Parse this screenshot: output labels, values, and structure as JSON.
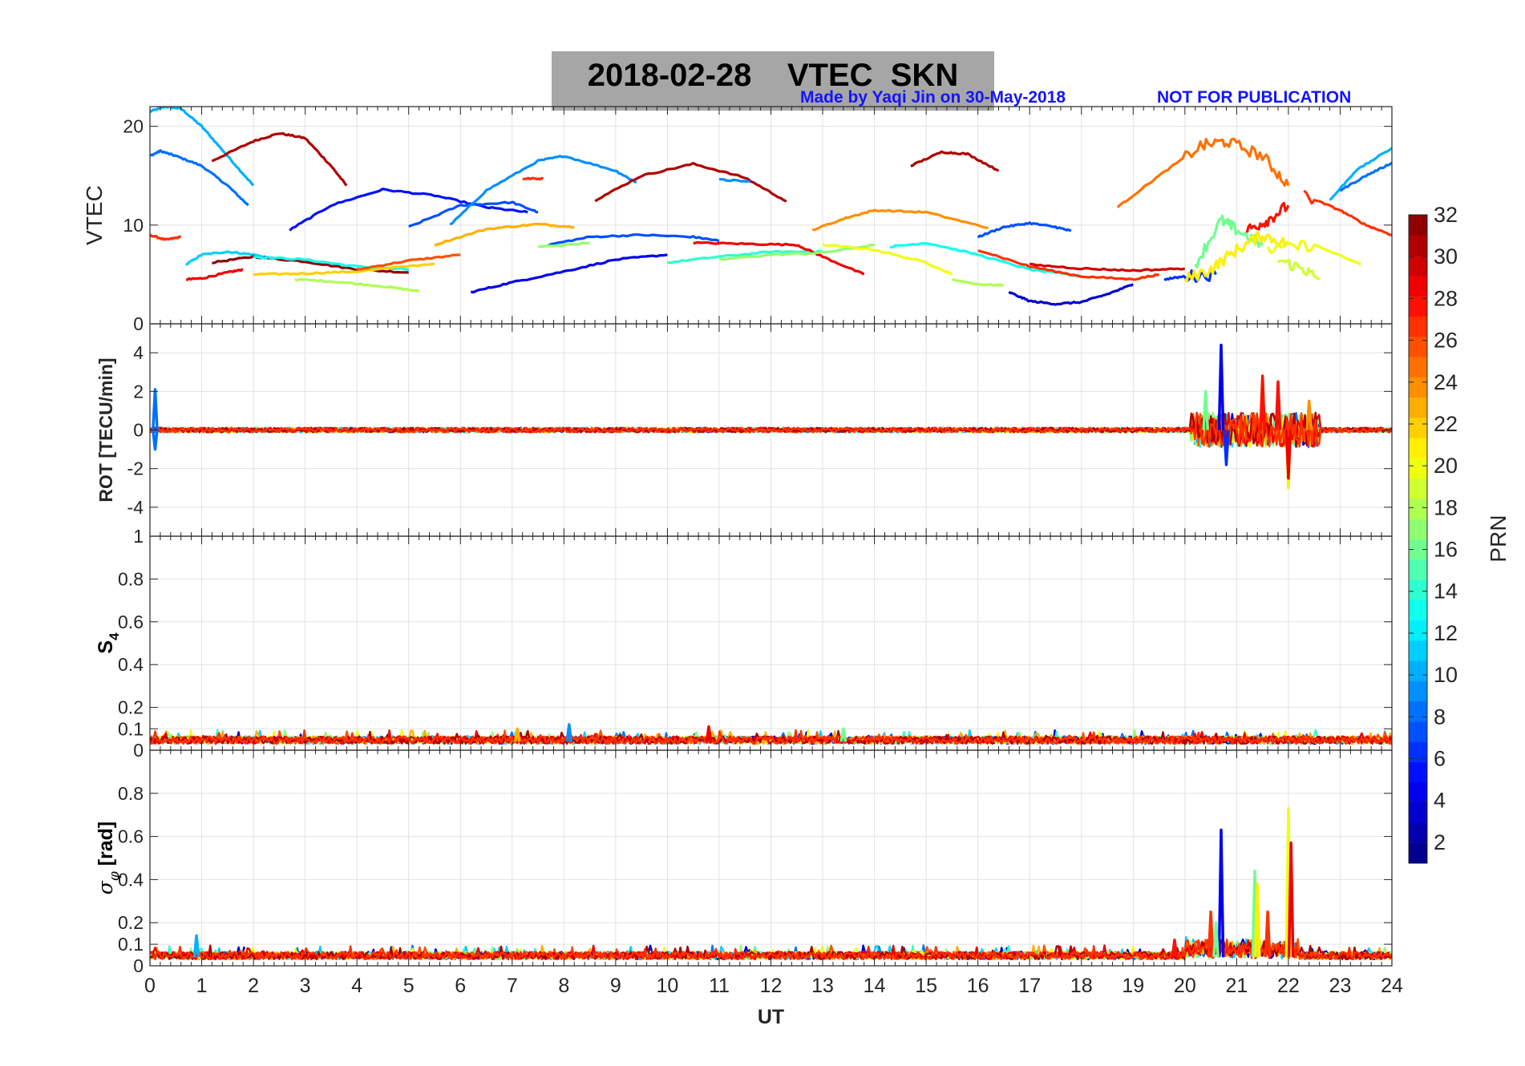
{
  "figure": {
    "title": "2018-02-28    VTEC  SKN",
    "made_by": "Made by Yaqi Jin on 30-May-2018",
    "notice": "NOT FOR PUBLICATION",
    "xlabel": "UT",
    "colorbar_label": "PRN"
  },
  "chart_data": [
    {
      "type": "line",
      "panel": "vtec",
      "ylabel": "VTEC",
      "xlim": [
        0,
        24
      ],
      "ylim": [
        0,
        22
      ],
      "yticks": [
        "0",
        "10",
        "20"
      ],
      "ytick_values": [
        0,
        10,
        20
      ],
      "grid": true,
      "series": [
        {
          "prn": 10,
          "x": [
            0,
            0.3,
            0.6,
            1.0,
            1.5,
            2.0
          ],
          "y": [
            21.5,
            22,
            21.8,
            20,
            17,
            14
          ]
        },
        {
          "prn": 8,
          "x": [
            0,
            0.2,
            0.5,
            1.0,
            1.5,
            1.9
          ],
          "y": [
            17,
            17.5,
            17,
            16,
            14,
            12
          ]
        },
        {
          "prn": 31,
          "x": [
            1.2,
            2.0,
            2.5,
            3.0,
            3.5,
            3.8
          ],
          "y": [
            16.5,
            18.5,
            19.3,
            18.8,
            16,
            14
          ]
        },
        {
          "prn": 27,
          "x": [
            0,
            0.3,
            0.6
          ],
          "y": [
            9,
            8.5,
            8.8
          ]
        },
        {
          "prn": 11,
          "x": [
            0.7,
            1.0,
            1.5,
            2.0,
            2.5
          ],
          "y": [
            6,
            7,
            7.3,
            7,
            6.5
          ]
        },
        {
          "prn": 29,
          "x": [
            0.7,
            1.0,
            1.5,
            1.8
          ],
          "y": [
            4.5,
            4.6,
            5.2,
            5.5
          ]
        },
        {
          "prn": 32,
          "x": [
            1.2,
            2.0,
            3.0,
            4.0,
            5.0
          ],
          "y": [
            6.2,
            6.8,
            6.3,
            5.5,
            5.2
          ]
        },
        {
          "prn": 13,
          "x": [
            2.0,
            3.0,
            4.0,
            5.0
          ],
          "y": [
            6.8,
            6.5,
            5.8,
            5.5
          ]
        },
        {
          "prn": 22,
          "x": [
            2.0,
            3.0,
            4.0,
            5.5
          ],
          "y": [
            5.0,
            5.1,
            5.3,
            6.1
          ]
        },
        {
          "prn": 18,
          "x": [
            2.8,
            3.5,
            4.5,
            5.2
          ],
          "y": [
            4.5,
            4.3,
            3.8,
            3.3
          ]
        },
        {
          "prn": 26,
          "x": [
            4.0,
            5.0,
            6.0
          ],
          "y": [
            5.5,
            6.4,
            7.0
          ]
        },
        {
          "prn": 5,
          "x": [
            2.7,
            3.5,
            4.5,
            5.5,
            6.5,
            7.3
          ],
          "y": [
            9.5,
            12,
            13.6,
            13,
            11.8,
            11.3
          ]
        },
        {
          "prn": 7,
          "x": [
            5.0,
            6.0,
            7.0,
            7.5
          ],
          "y": [
            9.8,
            12,
            12.3,
            11.3
          ]
        },
        {
          "prn": 9,
          "x": [
            5.8,
            6.5,
            7.5,
            8.0,
            9.0,
            9.4
          ],
          "y": [
            10,
            13.5,
            16.5,
            17,
            15.5,
            14.3
          ]
        },
        {
          "prn": 27,
          "x": [
            7.2,
            7.6
          ],
          "y": [
            14.7,
            14.7
          ]
        },
        {
          "prn": 23,
          "x": [
            5.5,
            6.5,
            7.5,
            8.2
          ],
          "y": [
            8.0,
            9.6,
            10.1,
            9.8
          ]
        },
        {
          "prn": 31,
          "x": [
            8.6,
            9.5,
            10.5,
            11.5,
            12.3
          ],
          "y": [
            12.5,
            15,
            16.2,
            14.8,
            12.4
          ]
        },
        {
          "prn": 9,
          "x": [
            11.0,
            11.6
          ],
          "y": [
            14.6,
            14.4
          ]
        },
        {
          "prn": 4,
          "x": [
            6.2,
            7.0,
            8.0,
            9.0,
            10.0
          ],
          "y": [
            3.2,
            4.2,
            5.3,
            6.5,
            7.0
          ]
        },
        {
          "prn": 14,
          "x": [
            10.0,
            11.0,
            12.0,
            13.0
          ],
          "y": [
            6.2,
            6.8,
            7.3,
            7.3
          ]
        },
        {
          "prn": 7,
          "x": [
            7.7,
            8.5,
            9.5,
            10.5,
            11.0
          ],
          "y": [
            8.0,
            8.8,
            9.0,
            8.8,
            8.4
          ]
        },
        {
          "prn": 17,
          "x": [
            7.5,
            8.5
          ],
          "y": [
            7.8,
            8.2
          ]
        },
        {
          "prn": 29,
          "x": [
            10.5,
            11.5,
            12.5,
            13.0,
            13.8
          ],
          "y": [
            8.2,
            8.1,
            8.0,
            6.8,
            5.0
          ]
        },
        {
          "prn": 17,
          "x": [
            11.0,
            12.0,
            13.0,
            14.0
          ],
          "y": [
            6.5,
            7.0,
            7.2,
            8.0
          ]
        },
        {
          "prn": 20,
          "x": [
            13.0,
            14.0,
            15.0,
            15.5
          ],
          "y": [
            8.0,
            7.5,
            6.2,
            5.0
          ]
        },
        {
          "prn": 24,
          "x": [
            12.8,
            13.5,
            14.0,
            15.0,
            16.2
          ],
          "y": [
            9.5,
            10.8,
            11.5,
            11.3,
            9.7
          ]
        },
        {
          "prn": 31,
          "x": [
            14.7,
            15.3,
            15.8,
            16.4
          ],
          "y": [
            16,
            17.4,
            17.2,
            15.5
          ]
        },
        {
          "prn": 13,
          "x": [
            14.3,
            15.0,
            16.0,
            17.0,
            18.0
          ],
          "y": [
            7.8,
            8.2,
            7.0,
            5.5,
            4.8
          ]
        },
        {
          "prn": 18,
          "x": [
            15.5,
            16.0,
            16.5
          ],
          "y": [
            4.5,
            4.0,
            3.9
          ]
        },
        {
          "prn": 7,
          "x": [
            16.0,
            16.5,
            17.0,
            17.5,
            17.8
          ],
          "y": [
            8.8,
            9.8,
            10.2,
            9.8,
            9.4
          ]
        },
        {
          "prn": 3,
          "x": [
            16.6,
            17.0,
            17.5,
            18.0,
            18.5,
            19.0
          ],
          "y": [
            3.2,
            2.3,
            2.0,
            2.2,
            3.0,
            4.0
          ]
        },
        {
          "prn": 27,
          "x": [
            16.0,
            17.0,
            18.0,
            19.0,
            19.5
          ],
          "y": [
            7.5,
            5.8,
            4.8,
            4.5,
            5.0
          ]
        },
        {
          "prn": 30,
          "x": [
            17.0,
            18.0,
            19.0,
            20.0
          ],
          "y": [
            6.0,
            5.6,
            5.4,
            5.6
          ]
        },
        {
          "prn": 25,
          "x": [
            18.7,
            19.5,
            20.3,
            20.8,
            21.5,
            22.0
          ],
          "y": [
            11.8,
            15,
            18,
            18.5,
            17,
            14
          ]
        },
        {
          "prn": 6,
          "x": [
            19.6,
            20.0,
            20.6
          ],
          "y": [
            4.5,
            4.8,
            5.0
          ]
        },
        {
          "prn": 16,
          "x": [
            20.2,
            20.7,
            21.0,
            21.5
          ],
          "y": [
            6,
            10.5,
            9.5,
            8
          ]
        },
        {
          "prn": 21,
          "x": [
            20.0,
            20.5,
            21.0,
            21.5,
            22.0
          ],
          "y": [
            4.5,
            5.5,
            7.5,
            9,
            8
          ]
        },
        {
          "prn": 28,
          "x": [
            21.2,
            21.6,
            22.0
          ],
          "y": [
            9.5,
            10.5,
            12.0
          ]
        },
        {
          "prn": 20,
          "x": [
            21.6,
            22.5,
            23.4
          ],
          "y": [
            7.5,
            8.0,
            6.0
          ]
        },
        {
          "prn": 19,
          "x": [
            21.8,
            22.3,
            22.6
          ],
          "y": [
            6.5,
            5.5,
            4.5
          ]
        },
        {
          "prn": 27,
          "x": [
            22.3,
            23.0,
            23.5,
            24.0
          ],
          "y": [
            13.0,
            11.5,
            10.0,
            9.0
          ]
        },
        {
          "prn": 10,
          "x": [
            22.8,
            23.3,
            24.0
          ],
          "y": [
            12.5,
            15.5,
            17.8
          ]
        },
        {
          "prn": 8,
          "x": [
            23.0,
            23.5,
            24.0
          ],
          "y": [
            13.5,
            15.0,
            16.3
          ]
        }
      ]
    },
    {
      "type": "line",
      "panel": "rot",
      "ylabel": "ROT [TECU/min]",
      "xlim": [
        0,
        24
      ],
      "ylim": [
        -5.5,
        5.5
      ],
      "yticks": [
        "-4",
        "-2",
        "0",
        "2",
        "4"
      ],
      "ytick_values": [
        -4,
        -2,
        0,
        2,
        4
      ],
      "grid": true,
      "description_of_series": "near-zero noise for all PRNs; disturbance 20-22.5 UT",
      "spikes": [
        {
          "prn": 8,
          "x": 0.1,
          "y": 2.1
        },
        {
          "prn": 8,
          "x": 0.1,
          "y": -1.0
        },
        {
          "prn": 4,
          "x": 20.7,
          "y": 4.4
        },
        {
          "prn": 6,
          "x": 20.8,
          "y": -1.8
        },
        {
          "prn": 16,
          "x": 20.4,
          "y": 2.0
        },
        {
          "prn": 28,
          "x": 21.5,
          "y": 2.8
        },
        {
          "prn": 28,
          "x": 21.8,
          "y": 2.5
        },
        {
          "prn": 21,
          "x": 22.0,
          "y": -3.0
        },
        {
          "prn": 29,
          "x": 22.0,
          "y": -2.5
        },
        {
          "prn": 24,
          "x": 22.4,
          "y": 1.5
        }
      ]
    },
    {
      "type": "line",
      "panel": "s4",
      "ylabel": "S4",
      "xlim": [
        0,
        24
      ],
      "ylim": [
        0,
        1
      ],
      "yticks": [
        "0",
        "0.1",
        "0.2",
        "0.4",
        "0.6",
        "0.8",
        "1"
      ],
      "ytick_values": [
        0,
        0.1,
        0.2,
        0.4,
        0.6,
        0.8,
        1
      ],
      "grid": true,
      "description_of_series": "values mostly 0.02-0.08 for all PRNs",
      "peaks": [
        {
          "prn": 23,
          "x": 7.1,
          "y": 0.1
        },
        {
          "prn": 9,
          "x": 8.1,
          "y": 0.12
        },
        {
          "prn": 29,
          "x": 10.8,
          "y": 0.11
        },
        {
          "prn": 16,
          "x": 13.4,
          "y": 0.1
        }
      ]
    },
    {
      "type": "line",
      "panel": "sigma_phi",
      "ylabel": "σ_φ [rad]",
      "xlim": [
        0,
        24
      ],
      "ylim": [
        0,
        1
      ],
      "yticks": [
        "0",
        "0.1",
        "0.2",
        "0.4",
        "0.6",
        "0.8"
      ],
      "ytick_values": [
        0,
        0.1,
        0.2,
        0.4,
        0.6,
        0.8
      ],
      "grid": true,
      "description_of_series": "values mostly 0.02-0.08 for all PRNs; spikes 20-22.1 UT",
      "spikes": [
        {
          "prn": 4,
          "x": 20.7,
          "y": 0.63
        },
        {
          "prn": 27,
          "x": 20.5,
          "y": 0.25
        },
        {
          "prn": 16,
          "x": 20.6,
          "y": 0.2
        },
        {
          "prn": 16,
          "x": 21.35,
          "y": 0.44
        },
        {
          "prn": 21,
          "x": 21.4,
          "y": 0.38
        },
        {
          "prn": 27,
          "x": 21.6,
          "y": 0.25
        },
        {
          "prn": 20,
          "x": 22.0,
          "y": 0.73
        },
        {
          "prn": 29,
          "x": 22.05,
          "y": 0.57
        },
        {
          "prn": 10,
          "x": 0.9,
          "y": 0.14
        },
        {
          "prn": 28,
          "x": 19.8,
          "y": 0.12
        }
      ]
    }
  ],
  "x_axis": {
    "ticks": [
      "0",
      "1",
      "2",
      "3",
      "4",
      "5",
      "6",
      "7",
      "8",
      "9",
      "10",
      "11",
      "12",
      "13",
      "14",
      "15",
      "16",
      "17",
      "18",
      "19",
      "20",
      "21",
      "22",
      "23",
      "24"
    ]
  },
  "colorbar": {
    "range": [
      1,
      32
    ],
    "ticks": [
      "2",
      "4",
      "6",
      "8",
      "10",
      "12",
      "14",
      "16",
      "18",
      "20",
      "22",
      "24",
      "26",
      "28",
      "30",
      "32"
    ],
    "tick_values": [
      2,
      4,
      6,
      8,
      10,
      12,
      14,
      16,
      18,
      20,
      22,
      24,
      26,
      28,
      30,
      32
    ],
    "colormap": "jet"
  }
}
